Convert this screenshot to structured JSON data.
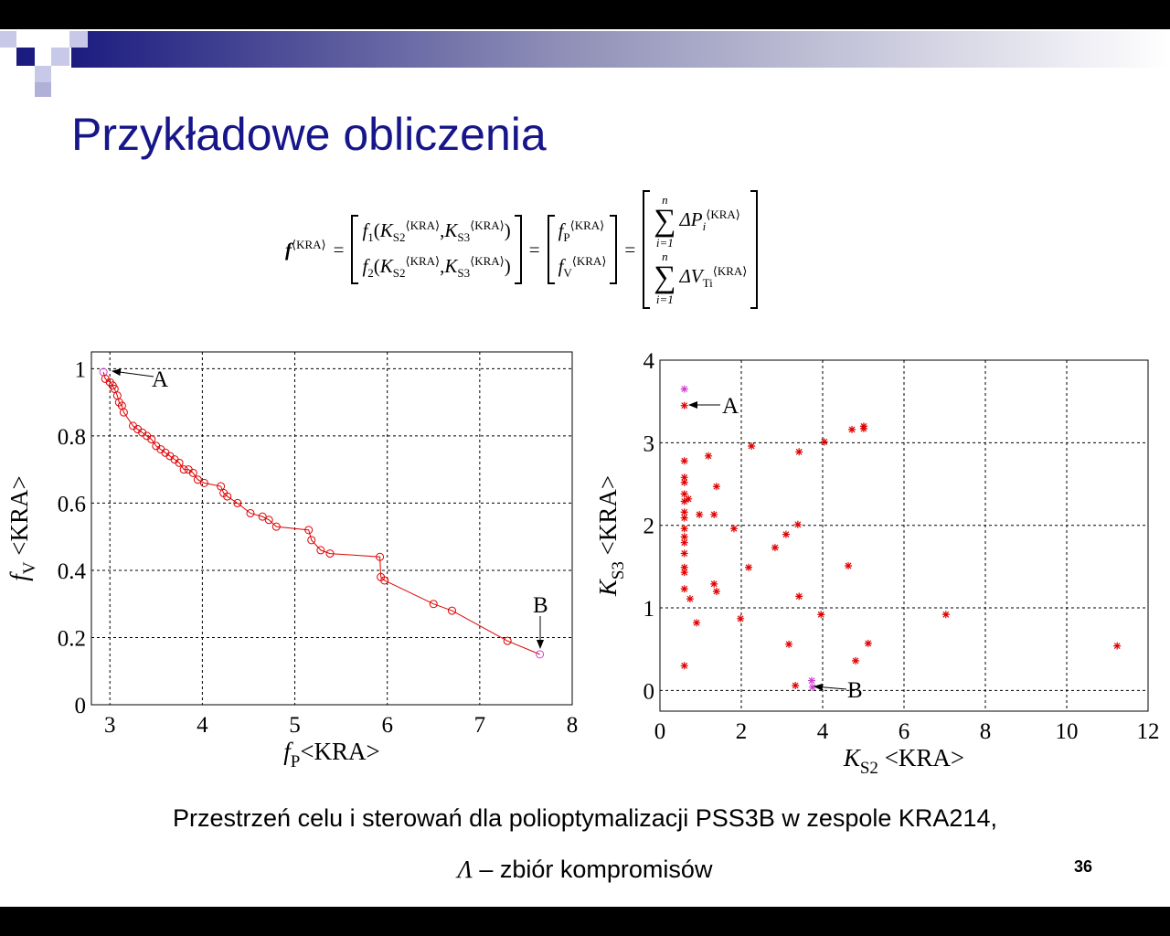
{
  "slide": {
    "title": "Przykładowe obliczenia",
    "caption": "Przestrzeń celu i sterowań dla polioptymalizacji PSS3B w zespole KRA214,",
    "lambda": "Λ",
    "lambda_text": " – zbiór kompromisów",
    "page_number": "36",
    "formula": {
      "f": "f",
      "kra": "⟨KRA⟩",
      "eq": "=",
      "one": "1",
      "two": "2",
      "K": "K",
      "S2": "S2",
      "S3": "S3",
      "lpar": "(",
      "rpar": ")",
      "comma": ",",
      "P": "P",
      "V": "V",
      "sum": "∑",
      "n": "n",
      "from": "i=1",
      "dP": "ΔP",
      "dV": "ΔV",
      "i": "i",
      "Ti": "Ti"
    }
  },
  "chart_data": [
    {
      "type": "line",
      "color": "#e00000",
      "endpoint_color": "#d040d0",
      "grid": true,
      "xlabel": {
        "symbol": "f",
        "subscript": "P",
        "unit": "<KRA>"
      },
      "ylabel": {
        "symbol": "f",
        "subscript": "V",
        "unit": " <KRA>"
      },
      "annotations": [
        "A",
        "B"
      ],
      "xlim": [
        2.8,
        8
      ],
      "ylim": [
        0,
        1.05
      ],
      "xticks": [
        3,
        4,
        5,
        6,
        7,
        8
      ],
      "yticks": [
        0,
        0.2,
        0.4,
        0.6,
        0.8,
        1
      ],
      "x": [
        2.93,
        2.95,
        3.0,
        3.03,
        3.05,
        3.08,
        3.1,
        3.13,
        3.15,
        3.25,
        3.3,
        3.35,
        3.4,
        3.45,
        3.5,
        3.55,
        3.6,
        3.65,
        3.7,
        3.75,
        3.8,
        3.85,
        3.9,
        3.95,
        4.02,
        4.2,
        4.23,
        4.27,
        4.38,
        4.52,
        4.65,
        4.72,
        4.8,
        5.15,
        5.18,
        5.28,
        5.38,
        5.92,
        5.93,
        5.97,
        6.5,
        6.7,
        7.3,
        7.65
      ],
      "values": [
        0.99,
        0.97,
        0.96,
        0.95,
        0.94,
        0.92,
        0.9,
        0.89,
        0.87,
        0.83,
        0.82,
        0.81,
        0.8,
        0.79,
        0.77,
        0.76,
        0.75,
        0.74,
        0.73,
        0.72,
        0.7,
        0.7,
        0.69,
        0.67,
        0.66,
        0.65,
        0.63,
        0.62,
        0.6,
        0.57,
        0.56,
        0.55,
        0.53,
        0.52,
        0.49,
        0.46,
        0.45,
        0.44,
        0.38,
        0.37,
        0.3,
        0.28,
        0.19,
        0.15
      ]
    },
    {
      "type": "scatter",
      "grid": true,
      "xlabel": {
        "symbol": "K",
        "subscript": "S2",
        "unit": " <KRA>"
      },
      "ylabel": {
        "symbol": "K",
        "subscript": "S3",
        "unit": " <KRA>"
      },
      "annotations": [
        "A",
        "B"
      ],
      "xlim": [
        0,
        12
      ],
      "ylim": [
        -0.25,
        4
      ],
      "xticks": [
        0,
        2,
        4,
        6,
        8,
        10,
        12
      ],
      "yticks": [
        0,
        1,
        2,
        3,
        4
      ],
      "series": [
        {
          "color": "#e00000",
          "x": [
            0.6,
            0.6,
            0.6,
            0.6,
            0.6,
            0.6,
            0.6,
            0.6,
            0.6,
            0.6,
            0.6,
            0.6,
            0.6,
            0.6,
            0.6,
            0.6,
            0.7,
            0.74,
            0.9,
            0.97,
            1.19,
            1.39,
            1.33,
            1.33,
            1.39,
            1.82,
            1.98,
            2.18,
            2.25,
            2.83,
            3.1,
            3.17,
            3.33,
            3.39,
            3.42,
            3.42,
            3.96,
            4.04,
            4.63,
            4.72,
            4.81,
            5.01,
            5.01,
            5.12,
            7.03,
            11.24
          ],
          "values": [
            3.45,
            2.78,
            2.58,
            2.52,
            2.38,
            2.29,
            2.16,
            2.09,
            1.96,
            1.86,
            1.79,
            1.66,
            1.49,
            1.43,
            1.23,
            0.3,
            2.32,
            1.11,
            0.82,
            2.13,
            2.84,
            2.47,
            2.13,
            1.29,
            1.2,
            1.96,
            0.87,
            1.49,
            2.96,
            1.73,
            1.89,
            0.56,
            0.06,
            2.01,
            2.89,
            1.14,
            0.92,
            3.01,
            1.51,
            3.16,
            0.36,
            3.2,
            3.17,
            0.57,
            0.92,
            0.54
          ]
        },
        {
          "color": "#d040d0",
          "x": [
            0.6,
            3.73,
            3.75
          ],
          "values": [
            3.65,
            0.12,
            0.04
          ]
        }
      ]
    }
  ]
}
